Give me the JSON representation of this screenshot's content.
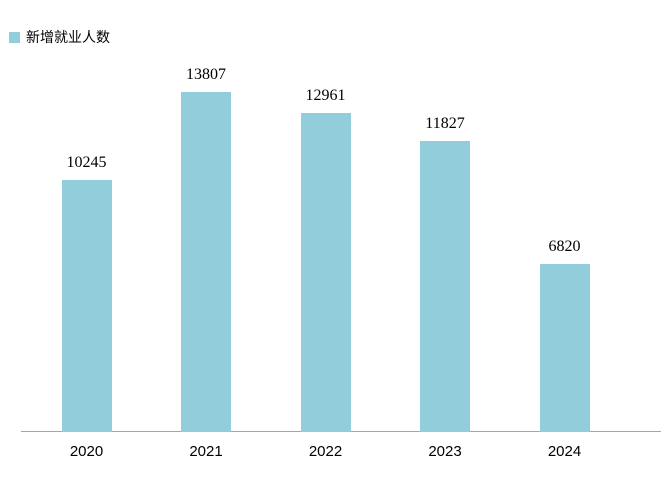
{
  "legend": {
    "label": "新增就业人数"
  },
  "colors": {
    "bar": "#92CDDC",
    "axis_line": "#A6A6A6",
    "text": "#000000",
    "background": "#FFFFFF"
  },
  "chart_data": {
    "type": "bar",
    "title": "",
    "xlabel": "",
    "ylabel": "",
    "categories": [
      "2020",
      "2021",
      "2022",
      "2023",
      "2024"
    ],
    "series": [
      {
        "name": "新增就业人数",
        "values": [
          10245,
          13807,
          12961,
          11827,
          6820
        ]
      }
    ],
    "data_labels": [
      10245,
      13807,
      12961,
      11827,
      6820
    ],
    "ylim": [
      0,
      14000
    ],
    "grid": false,
    "y_axis_visible": false,
    "legend_position": "top-left"
  }
}
